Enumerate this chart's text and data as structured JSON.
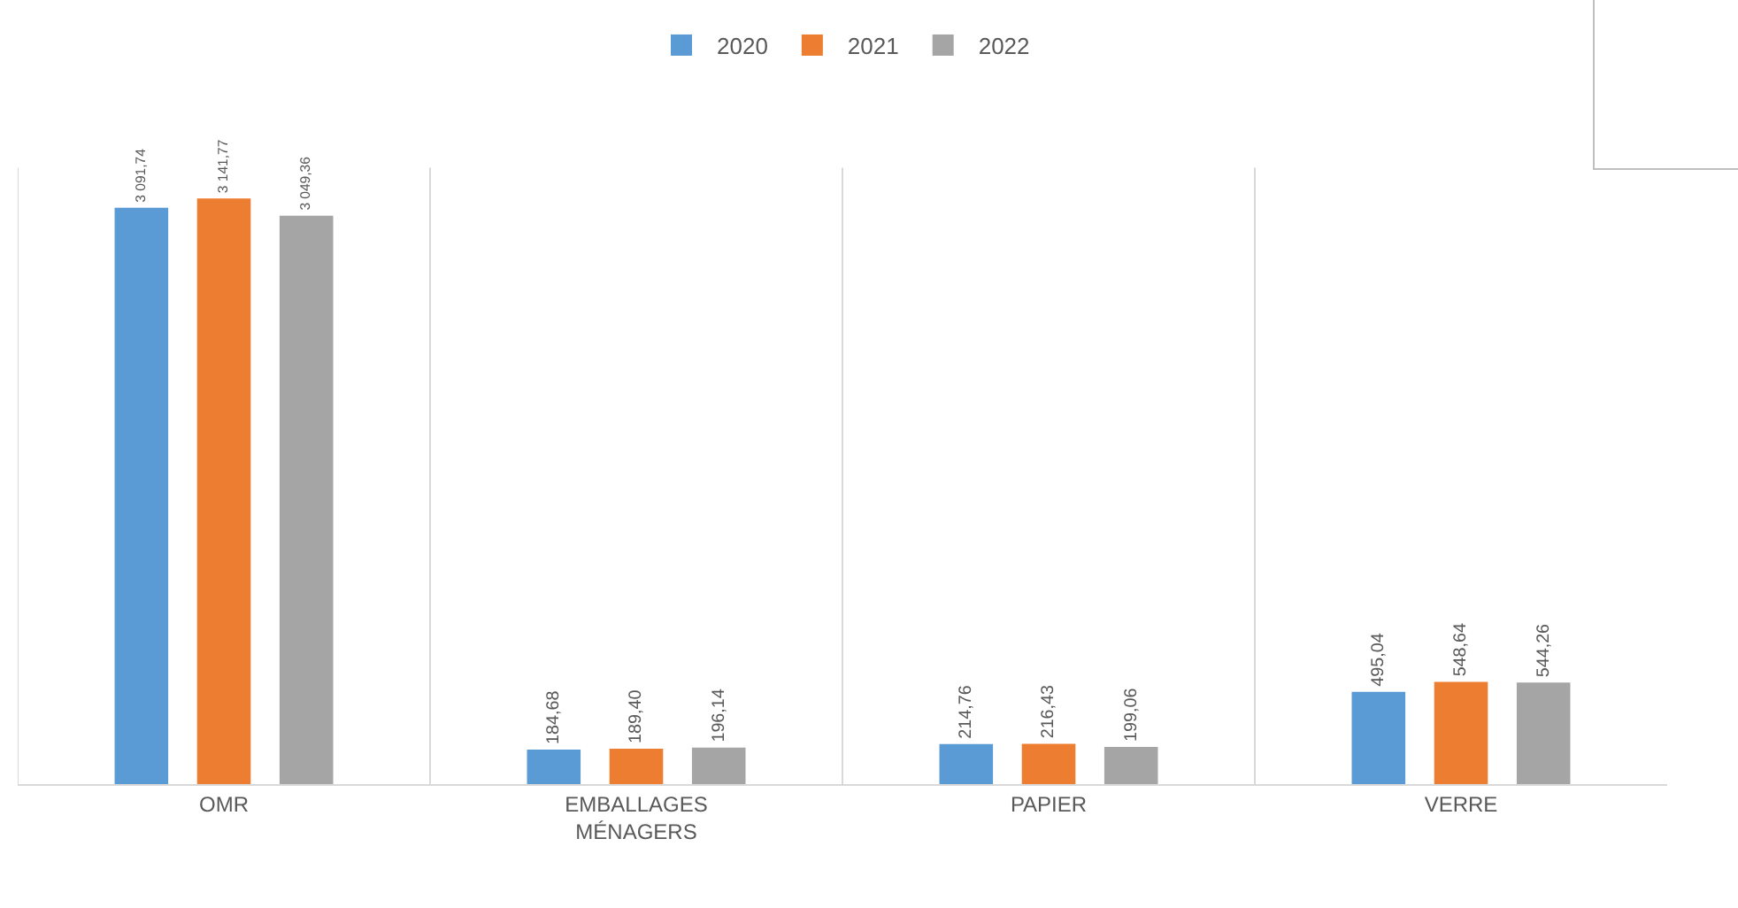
{
  "chart_data": {
    "type": "bar",
    "categories": [
      "OMR",
      "EMBALLAGES MÉNAGERS",
      "PAPIER",
      "VERRE"
    ],
    "series": [
      {
        "name": "2020",
        "color": "#5b9bd5",
        "values": [
          3091.74,
          184.68,
          214.76,
          495.04
        ],
        "value_labels": [
          "3 091,74",
          "184,68",
          "214,76",
          "495,04"
        ]
      },
      {
        "name": "2021",
        "color": "#ed7d31",
        "values": [
          3141.77,
          189.4,
          216.43,
          548.64
        ],
        "value_labels": [
          "3 141,77",
          "189,40",
          "216,43",
          "548,64"
        ]
      },
      {
        "name": "2022",
        "color": "#a5a5a5",
        "values": [
          3049.36,
          196.14,
          199.06,
          544.26
        ],
        "value_labels": [
          "3 049,36",
          "196,14",
          "199,06",
          "544,26"
        ]
      }
    ],
    "grid": "x",
    "legend": "top",
    "tick_labels": "x"
  }
}
